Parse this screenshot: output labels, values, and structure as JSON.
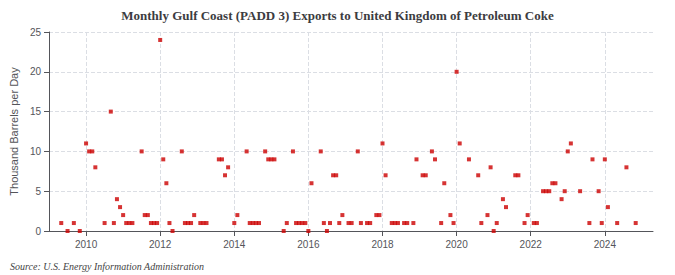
{
  "chart_data": {
    "type": "scatter",
    "title": "Monthly Gulf Coast (PADD 3) Exports to United Kingdom of Petroleum Coke",
    "ylabel": "Thousand Barrels per Day",
    "annotation": "Source: U.S. Energy Information Administration",
    "color": "#cc0000",
    "marker": "square",
    "grid": true,
    "x": [
      2009.33,
      2009.5,
      2009.67,
      2009.83,
      2010.0,
      2010.083,
      2010.167,
      2010.25,
      2010.5,
      2010.667,
      2010.75,
      2010.833,
      2010.917,
      2011.0,
      2011.083,
      2011.167,
      2011.25,
      2011.5,
      2011.583,
      2011.667,
      2011.75,
      2011.833,
      2011.917,
      2012.0,
      2012.083,
      2012.167,
      2012.25,
      2012.333,
      2012.583,
      2012.667,
      2012.75,
      2012.833,
      2012.917,
      2013.083,
      2013.167,
      2013.25,
      2013.583,
      2013.667,
      2013.75,
      2013.833,
      2014.0,
      2014.083,
      2014.333,
      2014.417,
      2014.5,
      2014.583,
      2014.667,
      2014.833,
      2014.917,
      2015.0,
      2015.083,
      2015.333,
      2015.417,
      2015.583,
      2015.667,
      2015.75,
      2015.833,
      2015.917,
      2015.999,
      2016.083,
      2016.333,
      2016.417,
      2016.5,
      2016.583,
      2016.667,
      2016.75,
      2016.833,
      2016.917,
      2017.083,
      2017.167,
      2017.333,
      2017.417,
      2017.583,
      2017.667,
      2017.833,
      2017.917,
      2018.0,
      2018.083,
      2018.25,
      2018.333,
      2018.417,
      2018.583,
      2018.667,
      2018.833,
      2018.917,
      2019.083,
      2019.167,
      2019.333,
      2019.417,
      2019.583,
      2019.667,
      2019.833,
      2019.917,
      2020.0,
      2020.083,
      2020.333,
      2020.583,
      2020.667,
      2020.833,
      2020.917,
      2021.0,
      2021.083,
      2021.25,
      2021.333,
      2021.583,
      2021.667,
      2021.833,
      2021.917,
      2022.083,
      2022.167,
      2022.333,
      2022.417,
      2022.5,
      2022.583,
      2022.667,
      2022.833,
      2022.917,
      2023.0,
      2023.083,
      2023.333,
      2023.583,
      2023.667,
      2023.833,
      2023.917,
      2024.0,
      2024.083,
      2024.333,
      2024.583,
      2024.833
    ],
    "values": [
      1,
      0,
      1,
      0,
      11,
      10,
      10,
      8,
      1,
      15,
      1,
      4,
      3,
      2,
      1,
      1,
      1,
      10,
      2,
      2,
      1,
      1,
      1,
      24,
      9,
      6,
      1,
      0,
      10,
      1,
      1,
      1,
      2,
      1,
      1,
      1,
      9,
      9,
      7,
      8,
      1,
      2,
      10,
      1,
      1,
      1,
      1,
      10,
      9,
      9,
      9,
      0,
      1,
      10,
      1,
      1,
      1,
      1,
      0,
      6,
      10,
      1,
      0,
      1,
      7,
      7,
      1,
      2,
      1,
      1,
      10,
      1,
      1,
      1,
      2,
      2,
      11,
      7,
      1,
      1,
      1,
      1,
      1,
      1,
      9,
      7,
      7,
      10,
      9,
      1,
      6,
      2,
      1,
      20,
      11,
      9,
      7,
      1,
      2,
      8,
      0,
      1,
      4,
      3,
      7,
      7,
      1,
      2,
      1,
      1,
      5,
      5,
      5,
      6,
      6,
      4,
      5,
      10,
      11,
      5,
      1,
      9,
      5,
      1,
      9,
      3,
      1,
      8,
      1
    ],
    "xlim": [
      2009.0,
      2025.3
    ],
    "xticks": [
      2010,
      2012,
      2014,
      2016,
      2018,
      2020,
      2022,
      2024
    ],
    "ylim": [
      0,
      25
    ],
    "yticks": [
      0,
      5,
      10,
      15,
      20,
      25
    ]
  }
}
